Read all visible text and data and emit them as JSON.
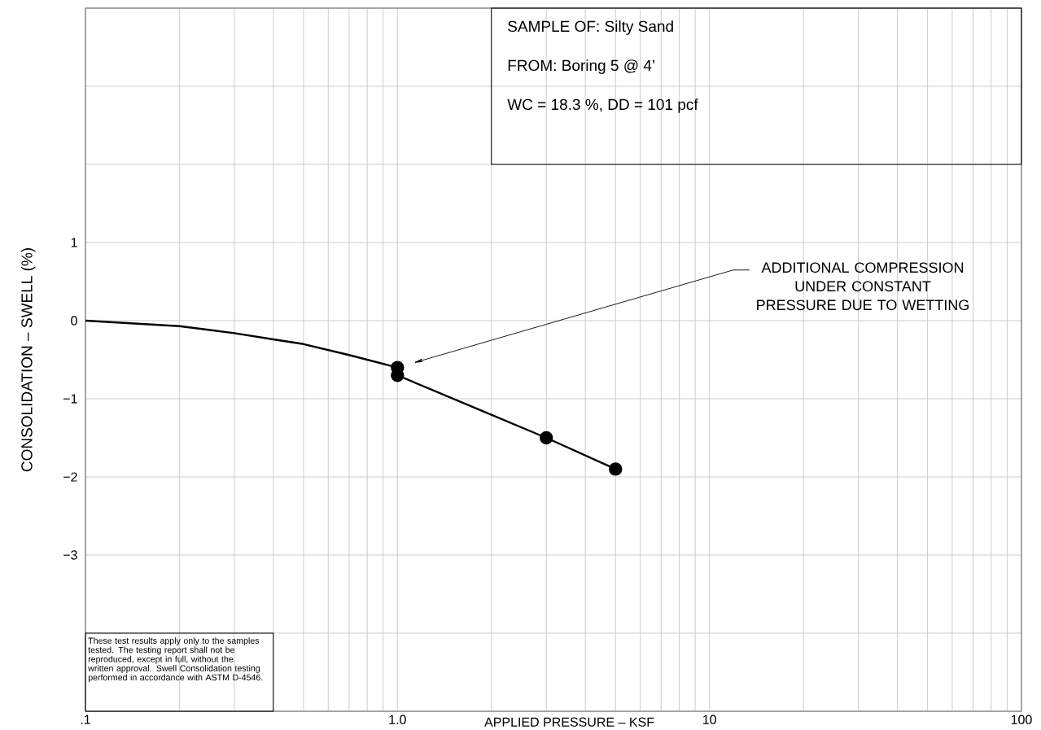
{
  "chart_data": {
    "type": "line",
    "xlabel": "APPLIED PRESSURE – KSF",
    "ylabel": "CONSOLIDATION – SWELL     (%)",
    "log": "x",
    "xlim": [
      0.1,
      100
    ],
    "ylim": [
      -5,
      4
    ],
    "xticks": [
      {
        "value": 0.1,
        "label": ".1"
      },
      {
        "value": 1,
        "label": "1.0"
      },
      10,
      100
    ],
    "yticks": [
      {
        "value": -5,
        "label": null
      },
      {
        "value": -4,
        "label": null
      },
      {
        "value": -3,
        "label": "−3"
      },
      {
        "value": -2,
        "label": "−2"
      },
      {
        "value": -1,
        "label": "−1"
      },
      0,
      1,
      {
        "value": 2,
        "label": null
      },
      {
        "value": 3,
        "label": null
      },
      {
        "value": 4,
        "label": null
      }
    ],
    "grid": true,
    "series": [
      {
        "color": "#000000",
        "marker": "none",
        "x": [
          0.1,
          0.2,
          0.3,
          0.4,
          0.5,
          0.7,
          1.0
        ],
        "values": [
          0,
          -0.07,
          -0.16,
          -0.24,
          -0.3,
          -0.44,
          -0.6
        ]
      },
      {
        "color": "#000000",
        "marker": "circle",
        "x": [
          1.0,
          1.0,
          3.0,
          5.0
        ],
        "values": [
          -0.6,
          -0.7,
          -1.5,
          -1.9
        ]
      }
    ],
    "annotations": [
      "SAMPLE OF: Silty Sand",
      "FROM: Boring 5 @ 4’",
      "WC = 18.3 %, DD = 101 pcf",
      "ADDITIONAL COMPRESSION UNDER CONSTANT PRESSURE DUE TO WETTING",
      "These test results apply only to the samples tested. The testing report shall not be reproduced, except in full, without the written approval. Swell Consolidation testing performed in accordance with ASTM D-4546."
    ]
  }
}
